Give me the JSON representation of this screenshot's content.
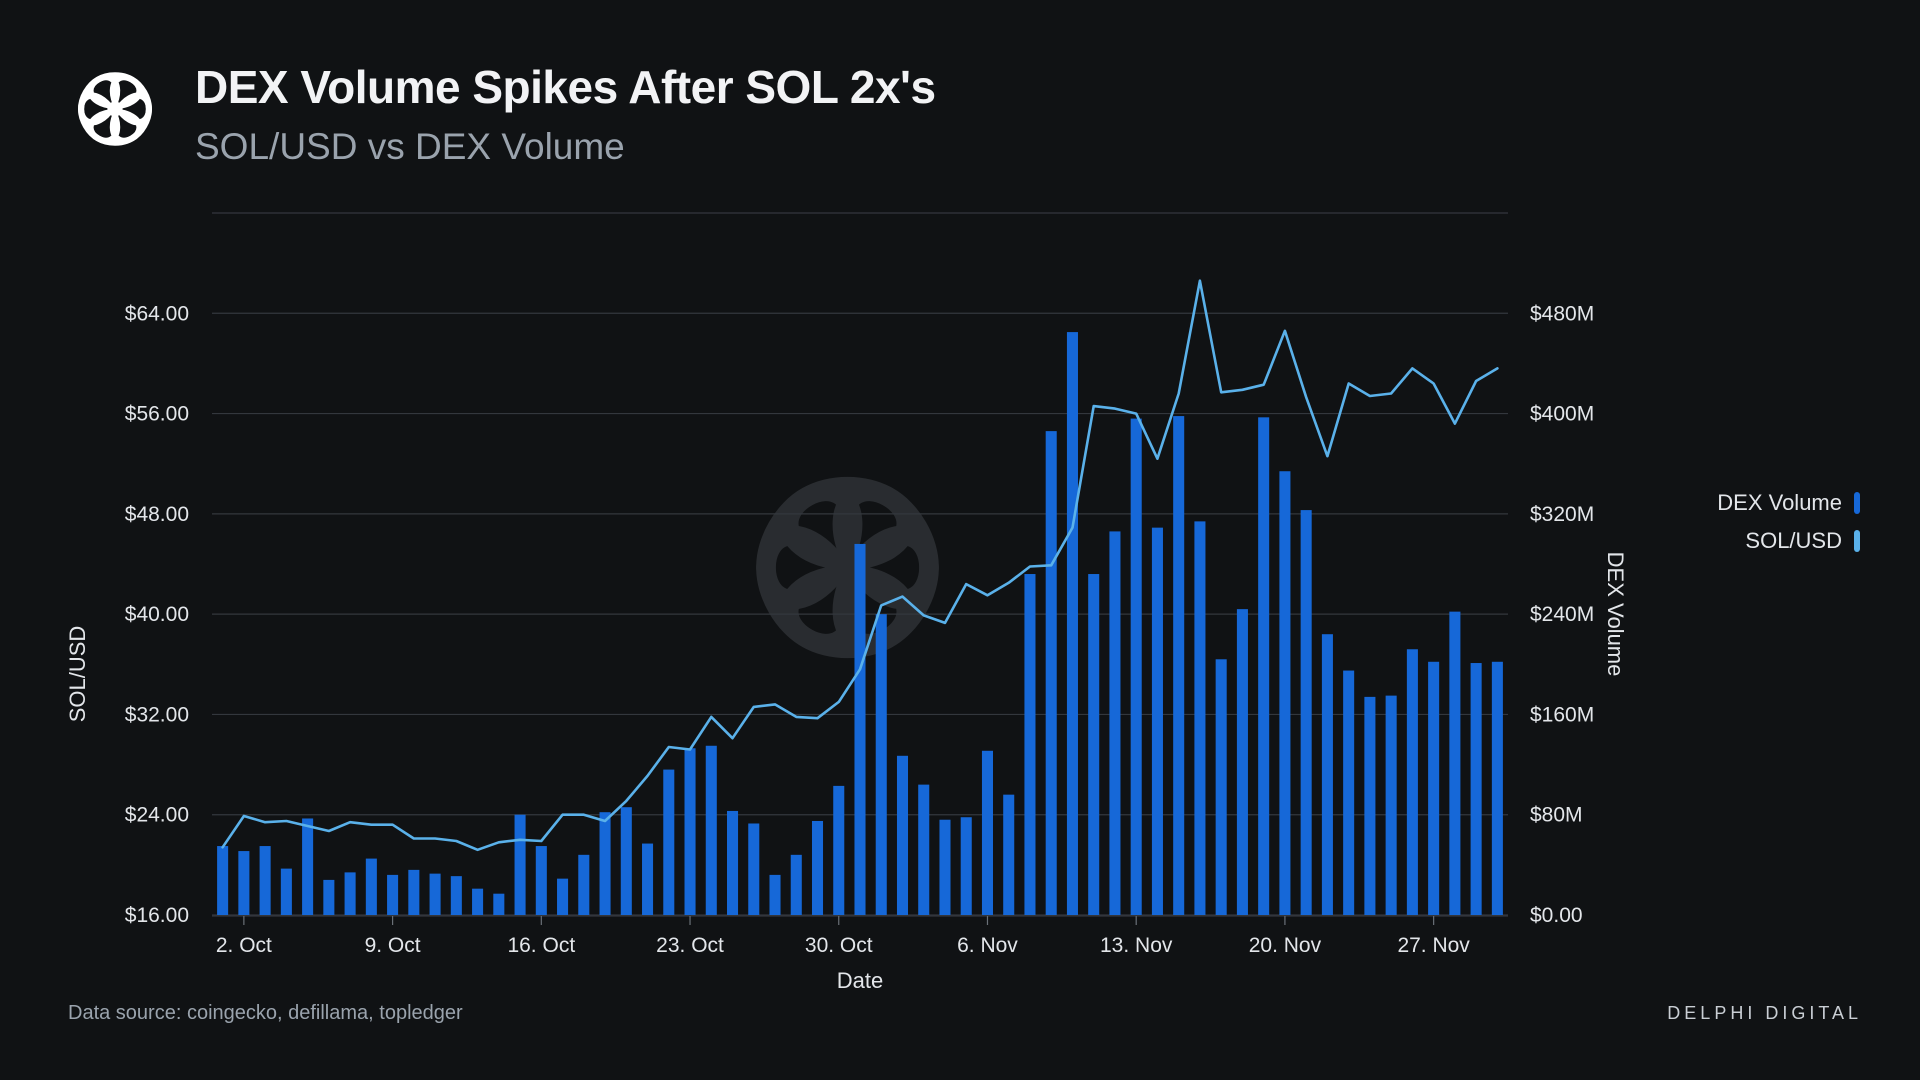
{
  "header": {
    "title": "DEX Volume Spikes After SOL 2x's",
    "subtitle": "SOL/USD vs DEX Volume"
  },
  "footer": {
    "source": "Data source: coingecko, defillama, topledger",
    "brand": "DELPHI DIGITAL"
  },
  "icons": {
    "logo": "delphi-flower-logo-icon",
    "watermark": "delphi-flower-watermark-icon"
  },
  "colors": {
    "background": "#101214",
    "bar": "#1668d8",
    "line": "#5ab1ea",
    "grid": "#33373d"
  },
  "chart_data": {
    "type": "bar+line",
    "title": "DEX Volume Spikes After SOL 2x's",
    "subtitle": "SOL/USD vs DEX Volume",
    "xlabel": "Date",
    "ylabel_left": "SOL/USD",
    "ylabel_right": "DEX Volume",
    "x_ticks": [
      "2. Oct",
      "9. Oct",
      "16. Oct",
      "23. Oct",
      "30. Oct",
      "6. Nov",
      "13. Nov",
      "20. Nov",
      "27. Nov"
    ],
    "x_tick_day_index": [
      1,
      8,
      15,
      22,
      29,
      36,
      43,
      50,
      57
    ],
    "y_left_ticks": [
      "$16.00",
      "$24.00",
      "$32.00",
      "$40.00",
      "$48.00",
      "$56.00",
      "$64.00"
    ],
    "y_left_tick_values": [
      16,
      24,
      32,
      40,
      48,
      56,
      64
    ],
    "y_left_range": [
      16,
      72
    ],
    "y_right_ticks": [
      "$0.00",
      "$80M",
      "$160M",
      "$240M",
      "$320M",
      "$400M",
      "$480M"
    ],
    "y_right_tick_values": [
      0,
      80,
      160,
      240,
      320,
      400,
      480
    ],
    "y_right_range": [
      0,
      560
    ],
    "y_right_unit": "USD millions",
    "legend_position": "right",
    "dates_start": "1. Oct",
    "dates_end": "30. Nov",
    "series": [
      {
        "name": "DEX Volume",
        "type": "bar",
        "axis": "right",
        "values": [
          55,
          51,
          55,
          37,
          77,
          28,
          34,
          45,
          32,
          36,
          33,
          31,
          21,
          17,
          80,
          55,
          29,
          48,
          82,
          86,
          57,
          116,
          133,
          135,
          83,
          73,
          32,
          48,
          75,
          103,
          296,
          240,
          127,
          104,
          76,
          78,
          131,
          96,
          272,
          386,
          465,
          272,
          306,
          396,
          309,
          398,
          314,
          204,
          244,
          397,
          354,
          323,
          224,
          195,
          174,
          175,
          212,
          202,
          242,
          201,
          202
        ]
      },
      {
        "name": "SOL/USD",
        "type": "line",
        "axis": "left",
        "values": [
          21.4,
          23.9,
          23.4,
          23.5,
          23.1,
          22.7,
          23.4,
          23.2,
          23.2,
          22.1,
          22.1,
          21.9,
          21.2,
          21.8,
          22.0,
          21.9,
          24.0,
          24.0,
          23.5,
          25.1,
          27.1,
          29.4,
          29.2,
          31.8,
          30.1,
          32.6,
          32.8,
          31.8,
          31.7,
          33.0,
          35.6,
          40.7,
          41.4,
          39.9,
          39.3,
          42.4,
          41.5,
          42.5,
          43.8,
          43.9,
          46.9,
          56.6,
          56.4,
          56.0,
          52.4,
          57.6,
          66.6,
          57.7,
          57.9,
          58.3,
          62.6,
          57.3,
          52.6,
          58.4,
          57.4,
          57.6,
          59.6,
          58.4,
          55.2,
          58.6,
          59.6
        ]
      }
    ]
  }
}
